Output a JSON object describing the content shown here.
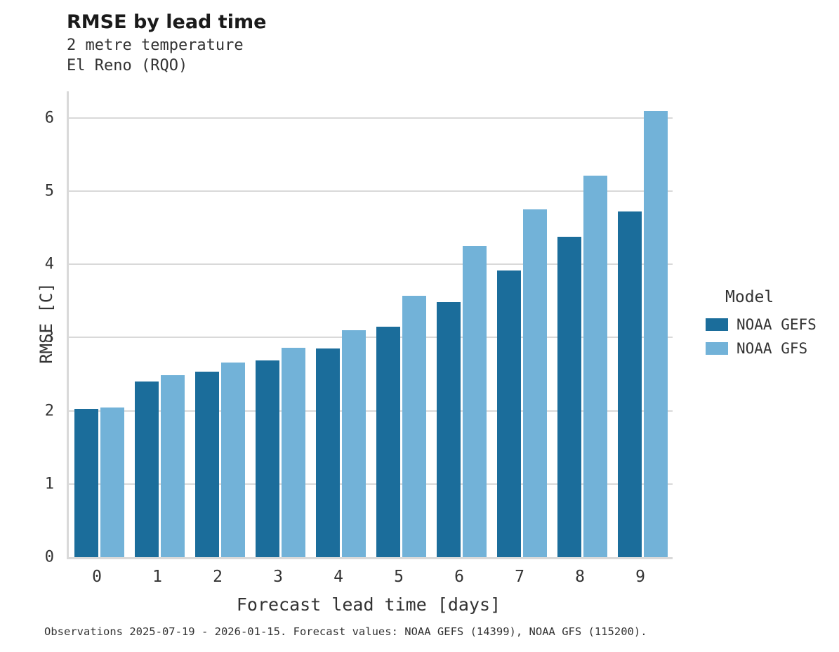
{
  "header": {
    "title": "RMSE by lead time",
    "subtitle1": "2 metre temperature",
    "subtitle2": "El Reno (RQO)"
  },
  "legend": {
    "title": "Model",
    "entries": [
      {
        "label": "NOAA GEFS",
        "color": "#1b6d9b"
      },
      {
        "label": "NOAA GFS",
        "color": "#72b2d8"
      }
    ]
  },
  "caption": "Observations 2025-07-19 - 2026-01-15. Forecast values: NOAA GEFS (14399), NOAA GFS (115200).",
  "chart_data": {
    "type": "bar",
    "title": "RMSE by lead time",
    "subtitle": "2 metre temperature — El Reno (RQO)",
    "xlabel": "Forecast lead time [days]",
    "ylabel": "RMSE [C]",
    "categories": [
      0,
      1,
      2,
      3,
      4,
      5,
      6,
      7,
      8,
      9
    ],
    "series": [
      {
        "name": "NOAA GEFS",
        "color": "#1b6d9b",
        "values": [
          2.02,
          2.4,
          2.53,
          2.69,
          2.85,
          3.15,
          3.48,
          3.91,
          4.37,
          4.72
        ]
      },
      {
        "name": "NOAA GFS",
        "color": "#72b2d8",
        "values": [
          2.04,
          2.48,
          2.66,
          2.86,
          3.1,
          3.57,
          4.25,
          4.75,
          5.21,
          6.09
        ]
      }
    ],
    "yticks": [
      0,
      1,
      2,
      3,
      4,
      5,
      6
    ],
    "ylim": [
      0,
      6.36
    ],
    "grid": true,
    "legend_position": "right"
  }
}
